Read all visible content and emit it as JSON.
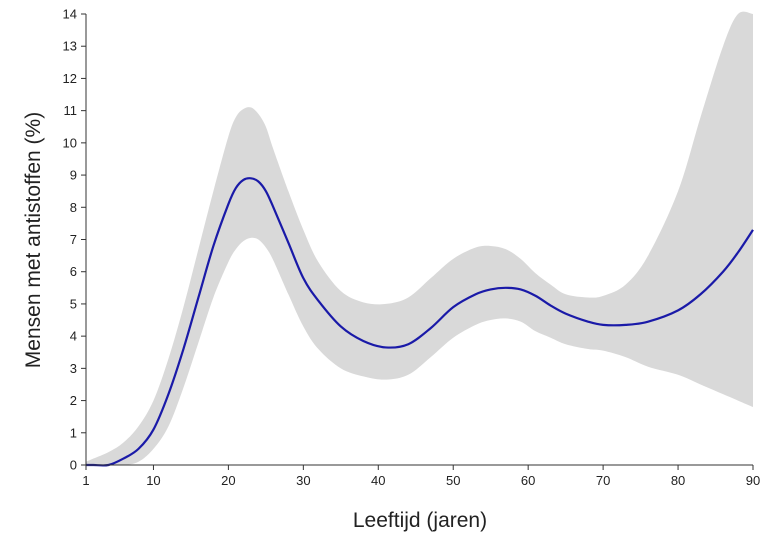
{
  "chart_data": {
    "type": "line",
    "xlabel": "Leeftijd (jaren)",
    "ylabel": "Mensen met antistoffen (%)",
    "xlim": [
      1,
      90
    ],
    "ylim": [
      0,
      14
    ],
    "xticks": [
      1,
      10,
      20,
      30,
      40,
      50,
      60,
      70,
      80,
      90
    ],
    "yticks": [
      0,
      1,
      2,
      3,
      4,
      5,
      6,
      7,
      8,
      9,
      10,
      11,
      12,
      13,
      14
    ],
    "grid": false,
    "colors": {
      "line": "#1a1aa8",
      "band": "#d9d9d9",
      "axis": "#333333"
    },
    "series": [
      {
        "x": [
          1,
          2,
          4,
          6,
          8,
          10,
          12,
          14,
          16,
          18,
          20,
          21,
          22,
          23,
          24,
          25,
          26,
          28,
          30,
          32,
          35,
          38,
          41,
          44,
          47,
          50,
          53,
          55,
          57,
          59,
          61,
          63,
          65,
          68,
          70,
          73,
          76,
          80,
          83,
          86,
          88,
          90
        ],
        "y": [
          0.0,
          0.0,
          0.0,
          0.2,
          0.5,
          1.1,
          2.2,
          3.6,
          5.2,
          6.8,
          8.1,
          8.6,
          8.85,
          8.9,
          8.8,
          8.5,
          8.0,
          6.9,
          5.8,
          5.1,
          4.3,
          3.85,
          3.65,
          3.75,
          4.25,
          4.9,
          5.3,
          5.45,
          5.5,
          5.45,
          5.25,
          4.95,
          4.7,
          4.45,
          4.35,
          4.35,
          4.45,
          4.8,
          5.3,
          6.0,
          6.6,
          7.3
        ],
        "lower": [
          0.0,
          0.0,
          0.0,
          0.0,
          0.1,
          0.5,
          1.2,
          2.4,
          3.8,
          5.2,
          6.3,
          6.7,
          6.95,
          7.05,
          7.0,
          6.75,
          6.35,
          5.3,
          4.3,
          3.6,
          3.0,
          2.75,
          2.65,
          2.8,
          3.35,
          3.95,
          4.35,
          4.5,
          4.55,
          4.45,
          4.15,
          3.95,
          3.75,
          3.6,
          3.55,
          3.35,
          3.05,
          2.8,
          2.5,
          2.2,
          2.0,
          1.8
        ],
        "upper": [
          0.1,
          0.2,
          0.4,
          0.7,
          1.2,
          2.0,
          3.3,
          4.9,
          6.7,
          8.5,
          10.2,
          10.8,
          11.05,
          11.1,
          10.9,
          10.5,
          9.8,
          8.5,
          7.3,
          6.3,
          5.4,
          5.05,
          5.0,
          5.2,
          5.8,
          6.4,
          6.75,
          6.8,
          6.7,
          6.4,
          5.95,
          5.6,
          5.3,
          5.2,
          5.25,
          5.6,
          6.5,
          8.5,
          10.8,
          13.0,
          14.0,
          14.0
        ]
      }
    ]
  }
}
